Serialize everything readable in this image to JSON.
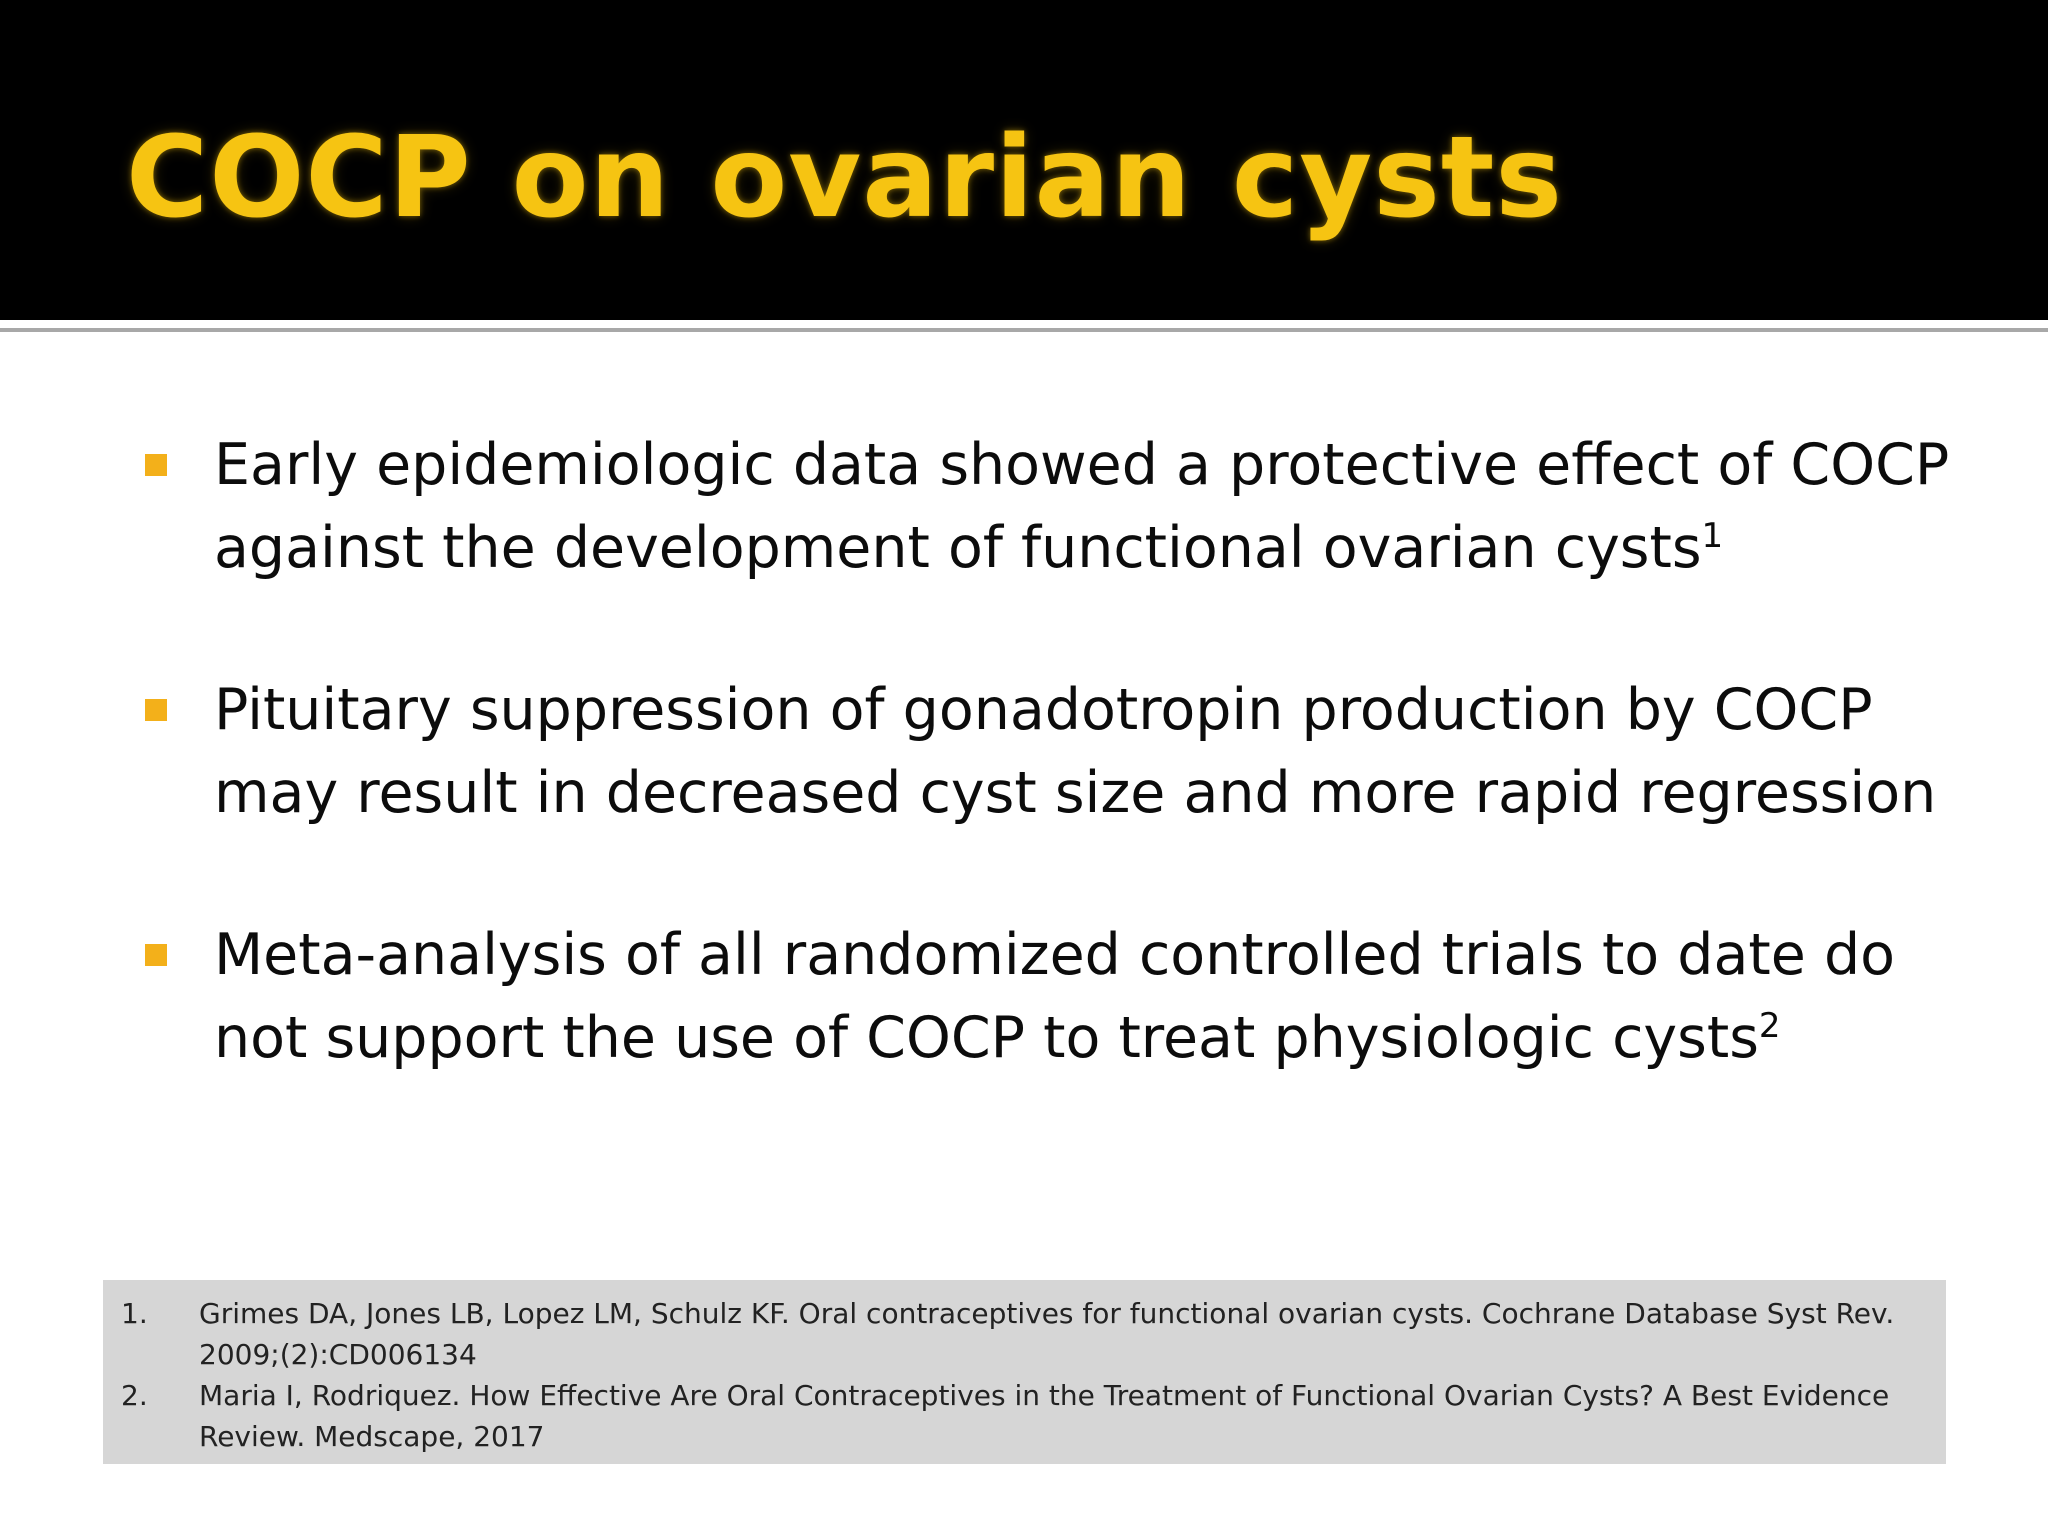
{
  "slide": {
    "title": "COCP on ovarian cysts",
    "accent_color": "#f3b01a",
    "title_color": "#f6c412",
    "bullet_icon": "square-bullet-icon",
    "bullets": [
      {
        "text": "Early epidemiologic data showed a protective effect of COCP against the development of functional ovarian cysts",
        "sup": "1"
      },
      {
        "text": "Pituitary suppression of gonadotropin production by COCP may result in decreased cyst size and more rapid regression",
        "sup": ""
      },
      {
        "text": "Meta-analysis of all randomized controlled trials to date do not support the use of COCP to treat physiologic cysts",
        "sup": "2"
      }
    ],
    "references": [
      {
        "number": "1.",
        "text": "Grimes DA, Jones LB, Lopez LM, Schulz KF. Oral contraceptives for functional ovarian cysts. Cochrane Database Syst Rev. 2009;(2):CD006134"
      },
      {
        "number": "2.",
        "text": "Maria I, Rodriquez. How Effective Are Oral Contraceptives in the Treatment of Functional Ovarian Cysts? A Best Evidence Review. Medscape, 2017"
      }
    ]
  }
}
